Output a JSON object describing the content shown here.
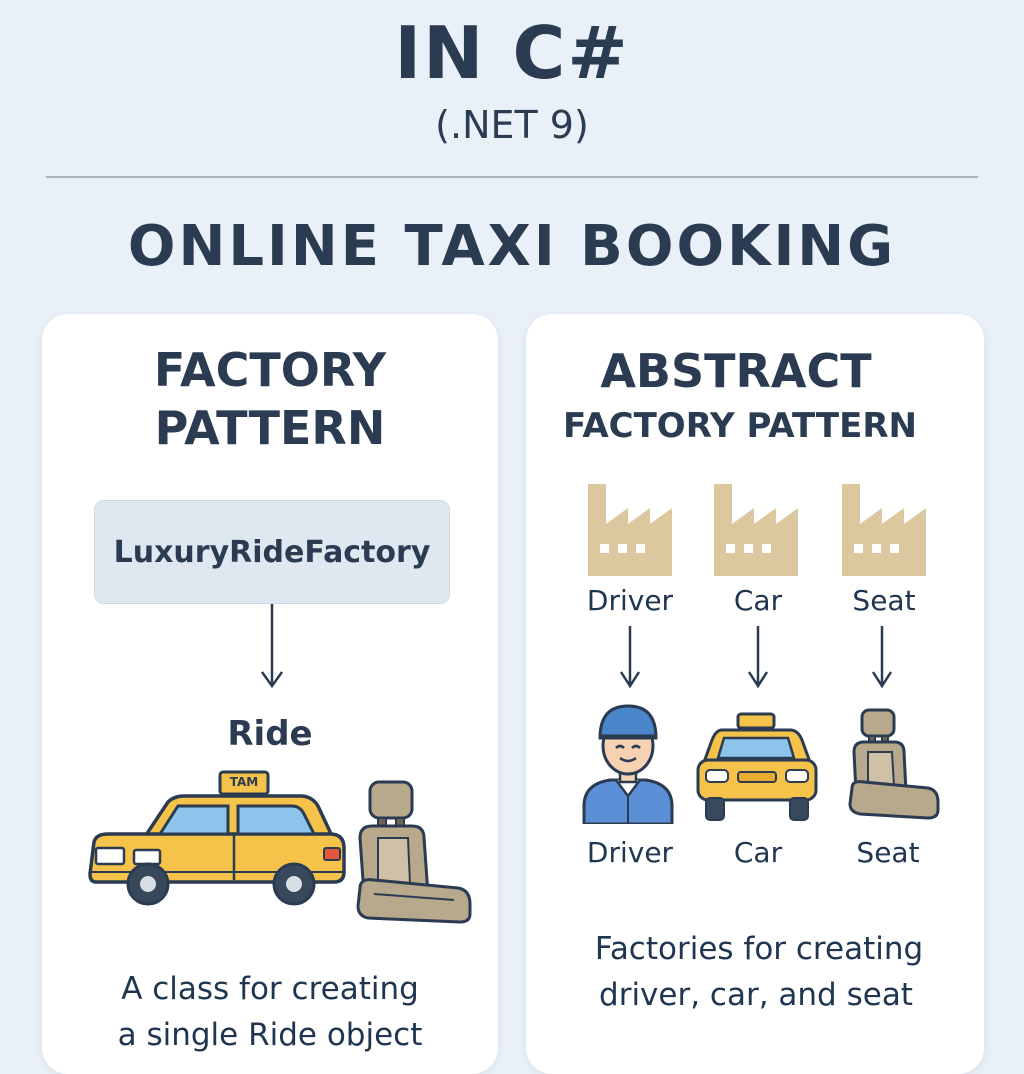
{
  "header": {
    "title": "IN C#",
    "subtitle": "(.NET 9)",
    "section_title": "ONLINE TAXI BOOKING"
  },
  "factory": {
    "heading_line1": "FACTORY",
    "heading_line2": "PATTERN",
    "factory_name": "LuxuryRideFactory",
    "product": "Ride",
    "taxi_sign": "TAM",
    "description_line1": "A class for creating",
    "description_line2": "a single Ride object"
  },
  "abstract": {
    "heading_line1": "ABSTRACT",
    "heading_line2": "FACTORY PATTERN",
    "factories": [
      "Driver",
      "Car",
      "Seat"
    ],
    "products": [
      "Driver",
      "Car",
      "Seat"
    ],
    "description_line1": "Factories for creating",
    "description_line2": "driver, car, and seat"
  },
  "colors": {
    "background": "#e9f0f7",
    "text": "#2a3b52",
    "taxi": "#f5c24a",
    "factory_icon": "#dcc89e",
    "seat": "#b9a98c",
    "driver_shirt": "#5b8fd6"
  }
}
